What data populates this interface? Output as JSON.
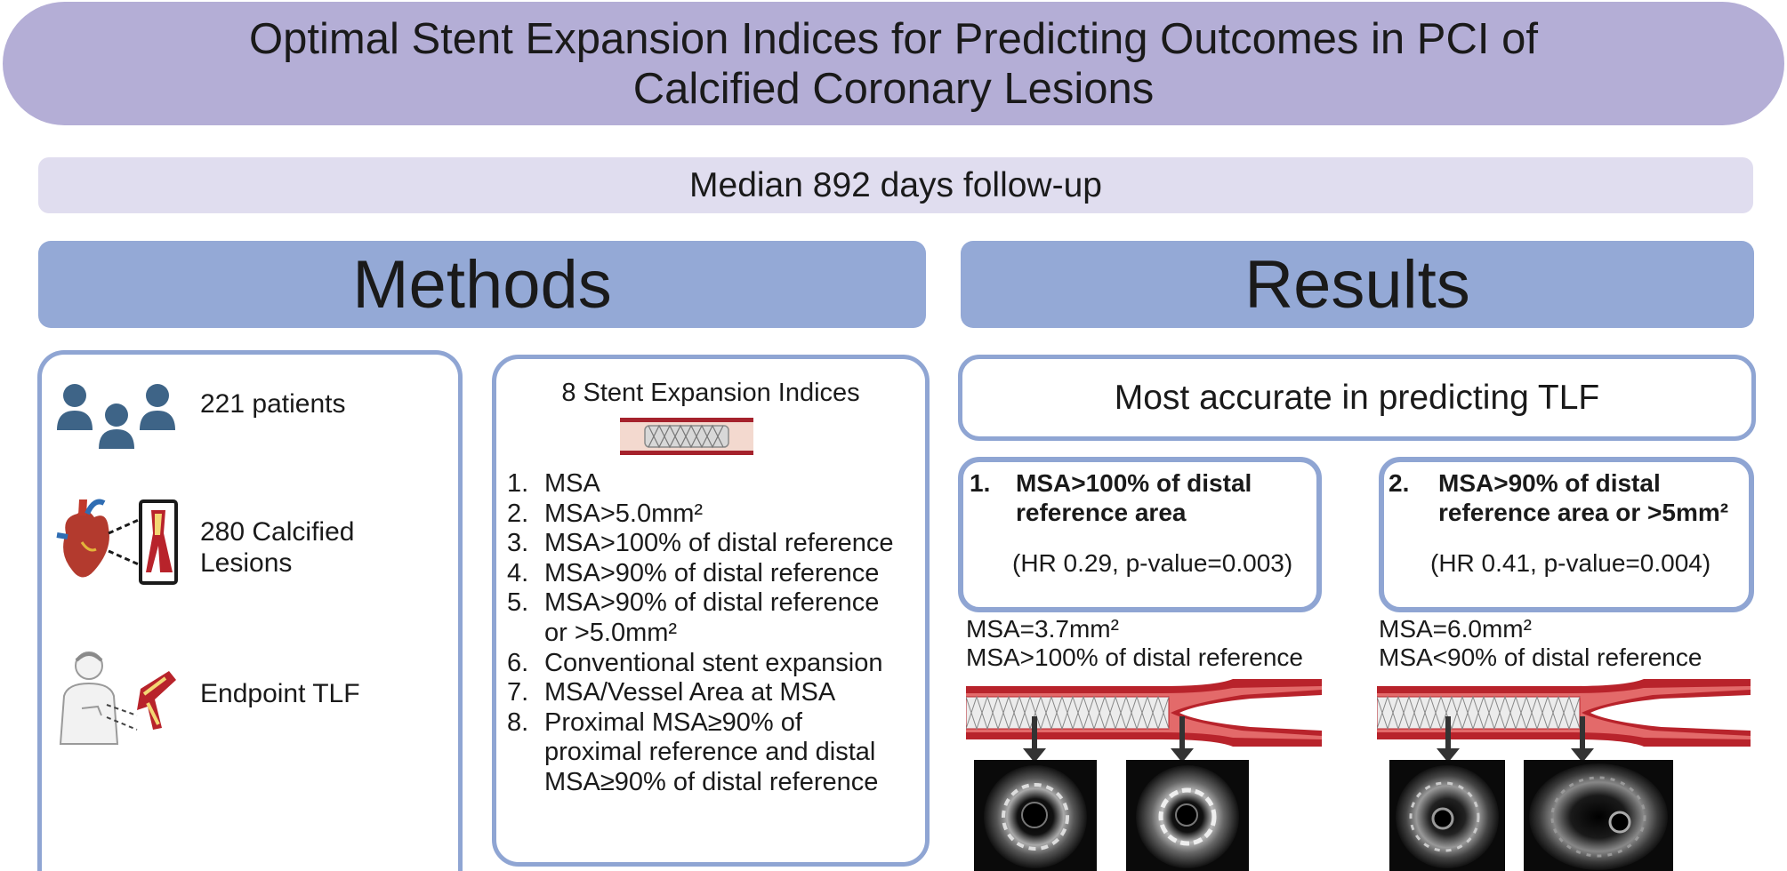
{
  "title": "Optimal Stent Expansion Indices for Predicting Outcomes in PCI of\nCalcified Coronary Lesions",
  "follow_up": "Median 892 days follow-up",
  "methods": {
    "header": "Methods",
    "rows": [
      {
        "icon": "patients-icon",
        "label": "221 patients"
      },
      {
        "icon": "heart-artery-icon",
        "label": "280 Calcified\n Lesions"
      },
      {
        "icon": "patient-endpoint-icon",
        "label": "Endpoint TLF"
      }
    ],
    "indices_title": "8 Stent Expansion Indices",
    "indices": [
      {
        "num": "1.",
        "text": "MSA"
      },
      {
        "num": "2.",
        "text": "MSA>5.0mm²"
      },
      {
        "num": "3.",
        "text": "MSA>100% of distal reference"
      },
      {
        "num": "4.",
        "text": "MSA>90% of distal reference"
      },
      {
        "num": "5.",
        "text": "MSA>90% of distal reference\nor >5.0mm²"
      },
      {
        "num": "6.",
        "text": "Conventional stent expansion"
      },
      {
        "num": "7.",
        "text": "MSA/Vessel Area at MSA"
      },
      {
        "num": "8.",
        "text": "Proximal MSA≥90% of\nproximal reference and distal\nMSA≥90% of distal reference"
      }
    ]
  },
  "results": {
    "header": "Results",
    "accurate": "Most accurate in predicting TLF",
    "boxes": [
      {
        "num": "1.",
        "title": "MSA>100% of distal\nreference area",
        "hr": "(HR 0.29, p-value=0.003)",
        "msa": "MSA=3.7mm²\nMSA>100% of distal reference"
      },
      {
        "num": "2.",
        "title": "MSA>90% of distal\nreference area or >5mm²",
        "hr": "(HR 0.41, p-value=0.004)",
        "msa": "MSA=6.0mm²\nMSA<90% of distal reference"
      }
    ]
  },
  "colors": {
    "title_bg": "#b4aed6",
    "followup_bg": "#e0ddef",
    "section_header_bg": "#94a9d6",
    "panel_border": "#8fa5d3",
    "person_icon": "#3e6487",
    "vessel_red": "#b8232b"
  }
}
